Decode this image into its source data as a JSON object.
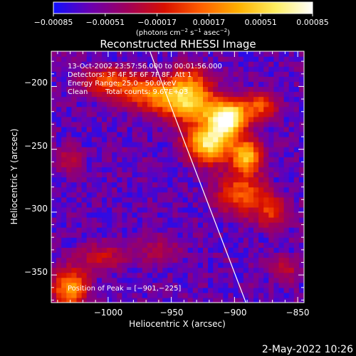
{
  "chart_data": {
    "type": "heatmap",
    "title": "Reconstructed RHESSI Image",
    "xlabel": "Heliocentric X (arcsec)",
    "ylabel": "Heliocentric Y (arcsec)",
    "xlim": [
      -1045,
      -845
    ],
    "ylim": [
      -372,
      -172
    ],
    "xticks": [
      -1000,
      -950,
      -900,
      -850
    ],
    "yticks": [
      -200,
      -250,
      -300,
      -350
    ],
    "xtick_labels": [
      "−1000",
      "−950",
      "−900",
      "−850"
    ],
    "ytick_labels": [
      "−200",
      "−250",
      "−300",
      "−350"
    ],
    "colorbar": {
      "range": [
        -0.00085,
        0.00085
      ],
      "ticks": [
        -0.00085,
        -0.00051,
        -0.00017,
        0.00017,
        0.00051,
        0.00085
      ],
      "tick_labels": [
        "−0.00085",
        "−0.00051",
        "−0.00017",
        "0.00017",
        "0.00051",
        "0.00085"
      ],
      "unit_parts": [
        "(photons cm",
        "−2",
        " s",
        "−1",
        " asec",
        "−2",
        ")"
      ],
      "colormap": [
        "#1010ff",
        "#6a00b0",
        "#a0005a",
        "#d81000",
        "#ff6000",
        "#ffb000",
        "#ffee60",
        "#ffffff"
      ]
    },
    "annotations": [
      "13-Oct-2002 23:57:56.000 to 00:01:56.000",
      "Detectors: 3F 4F 5F 6F 7F 8F, Att 1",
      "Energy Range: 25.0 - 50.0 keV",
      "Clean",
      "Total counts: 9.67E+03",
      "Position of Peak = [−901,−225]"
    ],
    "peak": {
      "x": -901,
      "y": -225
    },
    "limb_line": [
      {
        "x": -967,
        "y": -172
      },
      {
        "x": -891,
        "y": -372
      }
    ],
    "emission_sources": [
      {
        "x": -905,
        "y": -225,
        "sx": 10,
        "sy": 9,
        "value": 0.00085
      },
      {
        "x": -920,
        "y": -245,
        "sx": 13,
        "sy": 11,
        "value": 0.00075
      },
      {
        "x": -890,
        "y": -255,
        "sx": 8,
        "sy": 9,
        "value": 0.00062
      },
      {
        "x": -935,
        "y": -215,
        "sx": 16,
        "sy": 10,
        "value": 0.00055
      },
      {
        "x": -965,
        "y": -205,
        "sx": 20,
        "sy": 9,
        "value": 0.00045
      },
      {
        "x": -1000,
        "y": -195,
        "sx": 16,
        "sy": 8,
        "value": 0.00035
      },
      {
        "x": -935,
        "y": -195,
        "sx": 12,
        "sy": 10,
        "value": 0.00032
      },
      {
        "x": -880,
        "y": -215,
        "sx": 10,
        "sy": 8,
        "value": 0.0004
      },
      {
        "x": -895,
        "y": -285,
        "sx": 14,
        "sy": 12,
        "value": 0.00042
      },
      {
        "x": -870,
        "y": -300,
        "sx": 10,
        "sy": 10,
        "value": 0.0003
      },
      {
        "x": -1030,
        "y": -360,
        "sx": 10,
        "sy": 11,
        "value": 0.00055
      },
      {
        "x": -1005,
        "y": -335,
        "sx": 14,
        "sy": 8,
        "value": 0.00025
      },
      {
        "x": -960,
        "y": -330,
        "sx": 14,
        "sy": 9,
        "value": 0.00018
      },
      {
        "x": -1030,
        "y": -258,
        "sx": 9,
        "sy": 9,
        "value": 0.0002
      },
      {
        "x": -860,
        "y": -345,
        "sx": 9,
        "sy": 8,
        "value": 0.00022
      }
    ],
    "background_level": -0.00062
  },
  "timestamp": "2-May-2022 10:26"
}
